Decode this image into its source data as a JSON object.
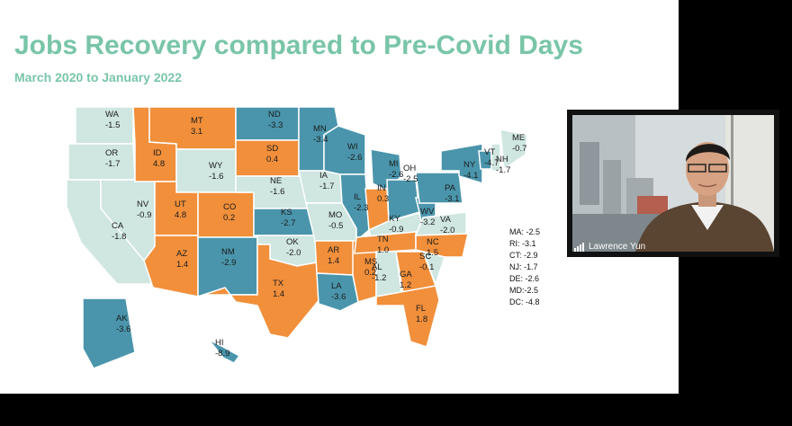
{
  "title": "Jobs Recovery compared to Pre-Covid Days",
  "subtitle": "March 2020 to January 2022",
  "colors": {
    "growth": "#f18f3b",
    "mild_loss": "#cfe6e1",
    "heavy_loss": "#4a95ac",
    "border": "#ffffff",
    "title": "#79c5a8"
  },
  "states": [
    {
      "abbr": "WA",
      "value": "-1.5"
    },
    {
      "abbr": "OR",
      "value": "-1.7"
    },
    {
      "abbr": "CA",
      "value": "-1.8"
    },
    {
      "abbr": "NV",
      "value": "-0.9"
    },
    {
      "abbr": "ID",
      "value": "4.8"
    },
    {
      "abbr": "MT",
      "value": "3.1"
    },
    {
      "abbr": "WY",
      "value": "-1.6"
    },
    {
      "abbr": "UT",
      "value": "4.8"
    },
    {
      "abbr": "AZ",
      "value": "1.4"
    },
    {
      "abbr": "CO",
      "value": "0.2"
    },
    {
      "abbr": "NM",
      "value": "-2.9"
    },
    {
      "abbr": "ND",
      "value": "-3.3"
    },
    {
      "abbr": "SD",
      "value": "0.4"
    },
    {
      "abbr": "NE",
      "value": "-1.6"
    },
    {
      "abbr": "KS",
      "value": "-2.7"
    },
    {
      "abbr": "OK",
      "value": "-2.0"
    },
    {
      "abbr": "TX",
      "value": "1.4"
    },
    {
      "abbr": "MN",
      "value": "-3.4"
    },
    {
      "abbr": "IA",
      "value": "-1.7"
    },
    {
      "abbr": "MO",
      "value": "-0.5"
    },
    {
      "abbr": "AR",
      "value": "1.4"
    },
    {
      "abbr": "LA",
      "value": "-3.6"
    },
    {
      "abbr": "WI",
      "value": "-2.6"
    },
    {
      "abbr": "IL",
      "value": "-2.3"
    },
    {
      "abbr": "MS",
      "value": "0.2"
    },
    {
      "abbr": "MI",
      "value": "-2.6"
    },
    {
      "abbr": "IN",
      "value": "0.3"
    },
    {
      "abbr": "KY",
      "value": "-0.9"
    },
    {
      "abbr": "TN",
      "value": "1.0"
    },
    {
      "abbr": "AL",
      "value": "-1.2"
    },
    {
      "abbr": "GA",
      "value": "1.2"
    },
    {
      "abbr": "FL",
      "value": "1.8"
    },
    {
      "abbr": "OH",
      "value": "-2.5"
    },
    {
      "abbr": "WV",
      "value": "-3.2"
    },
    {
      "abbr": "VA",
      "value": "-2.0"
    },
    {
      "abbr": "NC",
      "value": "1.5"
    },
    {
      "abbr": "SC",
      "value": "-0.1"
    },
    {
      "abbr": "PA",
      "value": "-3.1"
    },
    {
      "abbr": "NY",
      "value": "-4.1"
    },
    {
      "abbr": "VT",
      "value": "-4.7"
    },
    {
      "abbr": "NH",
      "value": "-1.7"
    },
    {
      "abbr": "ME",
      "value": "-0.7"
    },
    {
      "abbr": "AK",
      "value": "-3.6"
    },
    {
      "abbr": "HI",
      "value": "-8.9"
    }
  ],
  "legend": [
    "MA: -2.5",
    "RI: -3.1",
    "CT: -2.9",
    "NJ: -1.7",
    "DE: -2.6",
    "MD:-2.5",
    "DC: -4.8"
  ],
  "video": {
    "participant_name": "Lawrence Yun",
    "signal_icon": "signal-bars-icon"
  }
}
